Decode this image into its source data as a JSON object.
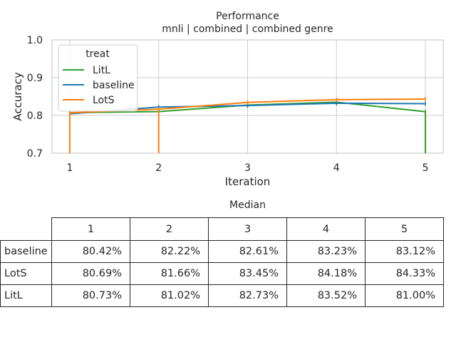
{
  "chart_data": [
    {
      "type": "line",
      "title": "Performance",
      "subtitle": "mnli | combined | combined genre",
      "xlabel": "Iteration",
      "ylabel": "Accuracy",
      "x": [
        1,
        2,
        3,
        4,
        5
      ],
      "xlim": [
        0.8,
        5.2
      ],
      "ylim": [
        0.7,
        1.0
      ],
      "yticks": [
        0.7,
        0.8,
        0.9,
        1.0
      ],
      "yticklabels": [
        "0.7",
        "0.8",
        "0.9",
        "1.0"
      ],
      "xticklabels": [
        "1",
        "2",
        "3",
        "4",
        "5"
      ],
      "grid": true,
      "legend": {
        "title": "treat",
        "placement": "upper-left"
      },
      "series": [
        {
          "name": "LitL",
          "color": "#2ca02c",
          "values": [
            0.8073,
            0.8102,
            0.8273,
            0.8352,
            0.81
          ],
          "drops_to_floor": [
            5
          ]
        },
        {
          "name": "baseline",
          "color": "#1f77b4",
          "values": [
            0.8042,
            0.8222,
            0.8261,
            0.8323,
            0.8312
          ],
          "drops_to_floor": []
        },
        {
          "name": "LotS",
          "color": "#ff7f0e",
          "values": [
            0.8069,
            0.8166,
            0.8345,
            0.8418,
            0.8433
          ],
          "drops_to_floor": [
            1,
            2
          ]
        }
      ]
    },
    {
      "type": "table",
      "title": "Median",
      "columns": [
        "1",
        "2",
        "3",
        "4",
        "5"
      ],
      "rows": [
        {
          "label": "baseline",
          "values": [
            "80.42%",
            "82.22%",
            "82.61%",
            "83.23%",
            "83.12%"
          ]
        },
        {
          "label": "LotS",
          "values": [
            "80.69%",
            "81.66%",
            "83.45%",
            "84.18%",
            "84.33%"
          ]
        },
        {
          "label": "LitL",
          "values": [
            "80.73%",
            "81.02%",
            "82.73%",
            "83.52%",
            "81.00%"
          ]
        }
      ]
    }
  ]
}
